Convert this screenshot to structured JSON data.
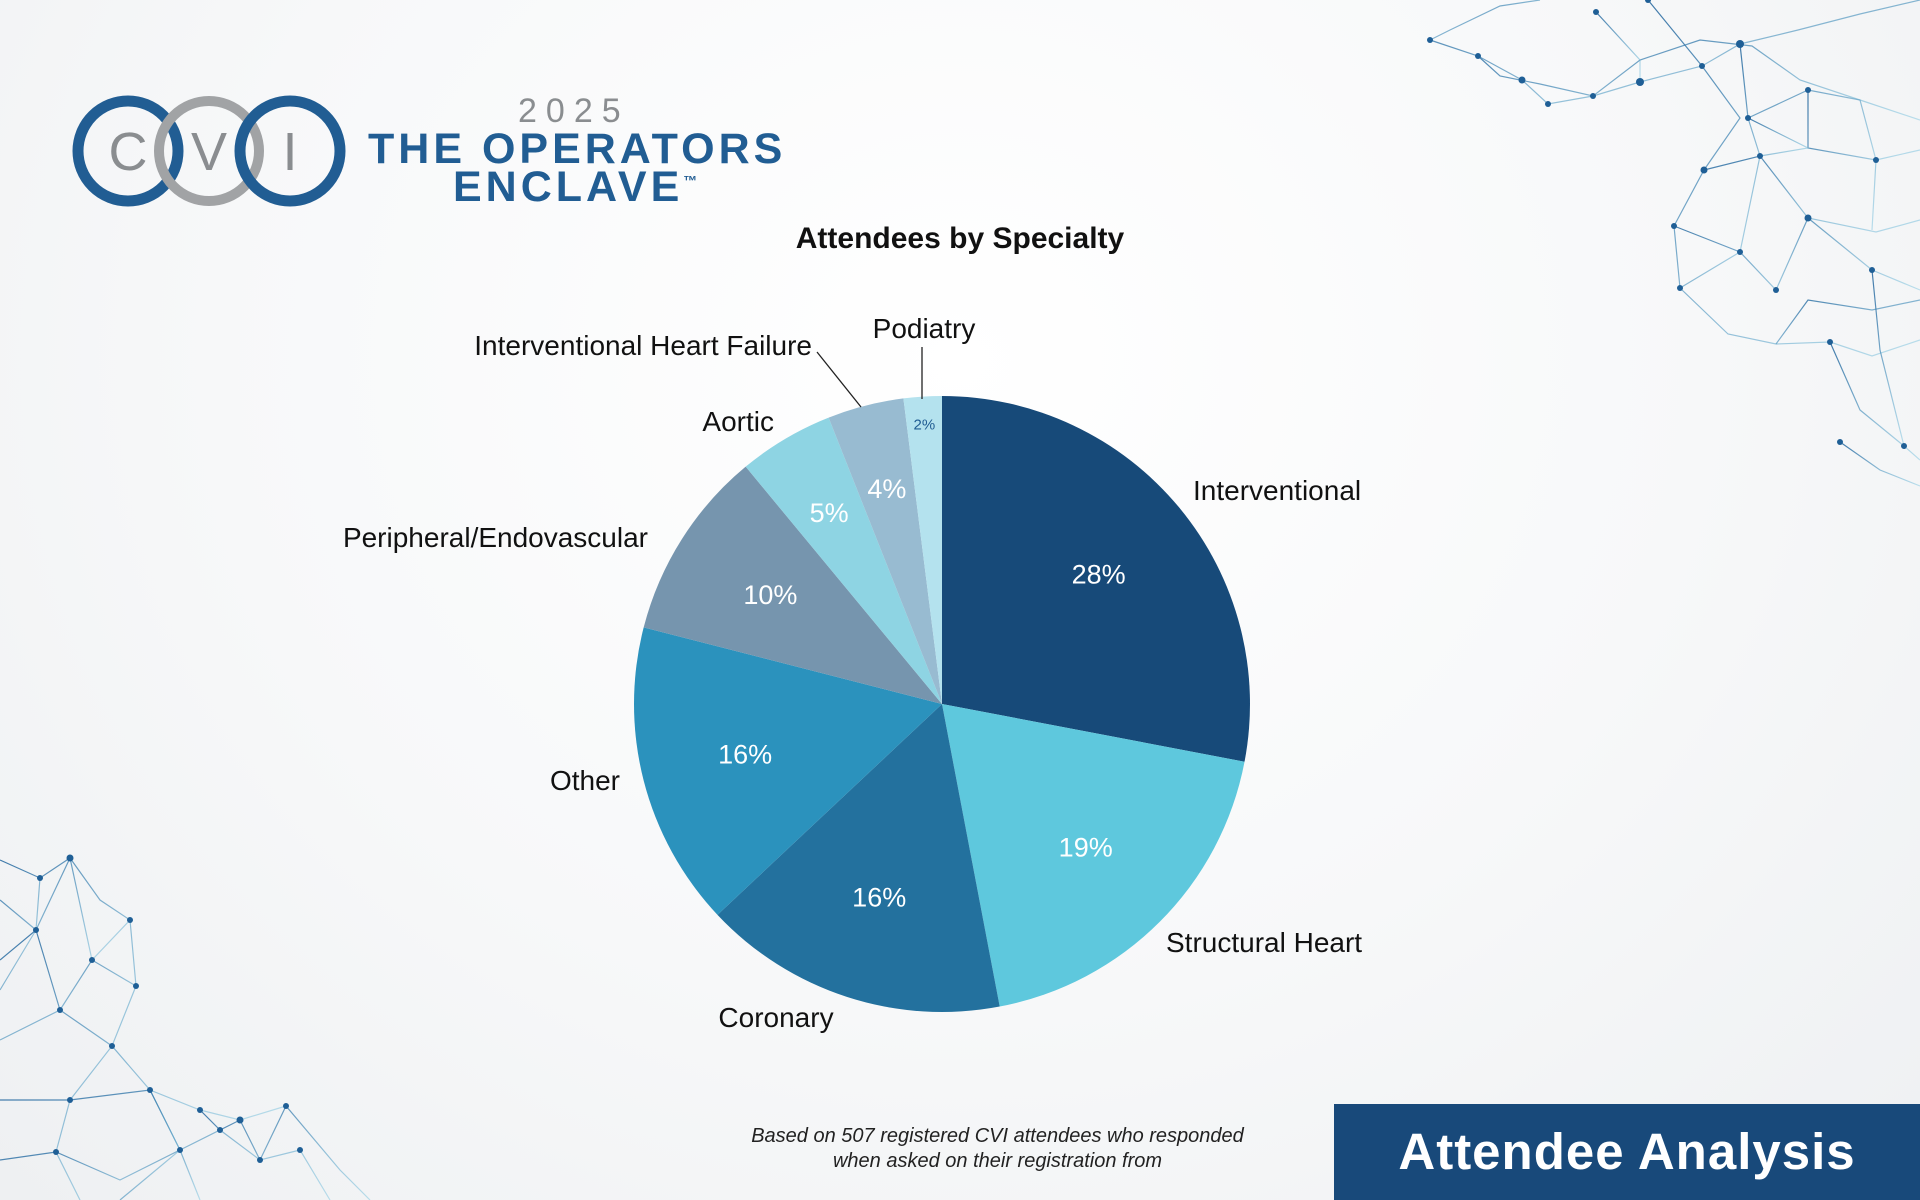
{
  "logo": {
    "letters": [
      "C",
      "V",
      "I"
    ],
    "year": "2025",
    "line1": "THE OPERATORS",
    "line2": "ENCLAVE",
    "trademark": "™"
  },
  "colors": {
    "brand_dark": "#18497a",
    "brand_text": "#215d93",
    "logo_gray": "#a1a3a5"
  },
  "chart_data": {
    "type": "pie",
    "title": "Attendees by Specialty",
    "start": "12 o'clock, clockwise",
    "slices": [
      {
        "label": "Interventional",
        "value": 28,
        "pct_label": "28%",
        "color": "#174a79"
      },
      {
        "label": "Structural Heart",
        "value": 19,
        "pct_label": "19%",
        "color": "#5ec8dd"
      },
      {
        "label": "Coronary",
        "value": 16,
        "pct_label": "16%",
        "color": "#23719e"
      },
      {
        "label": "Other",
        "value": 16,
        "pct_label": "16%",
        "color": "#2b92bd"
      },
      {
        "label": "Peripheral/Endovascular",
        "value": 10,
        "pct_label": "10%",
        "color": "#7695ae"
      },
      {
        "label": "Aortic",
        "value": 5,
        "pct_label": "5%",
        "color": "#8ed4e3"
      },
      {
        "label": "Interventional Heart Failure",
        "value": 4,
        "pct_label": "4%",
        "color": "#98bbd1"
      },
      {
        "label": "Podiatry",
        "value": 2,
        "pct_label": "2%",
        "color": "#b4e2ee"
      }
    ]
  },
  "footnote": {
    "line1": "Based on 507 registered CVI attendees who responded",
    "line2": "when asked on their registration from"
  },
  "banner": {
    "label": "Attendee Analysis"
  }
}
